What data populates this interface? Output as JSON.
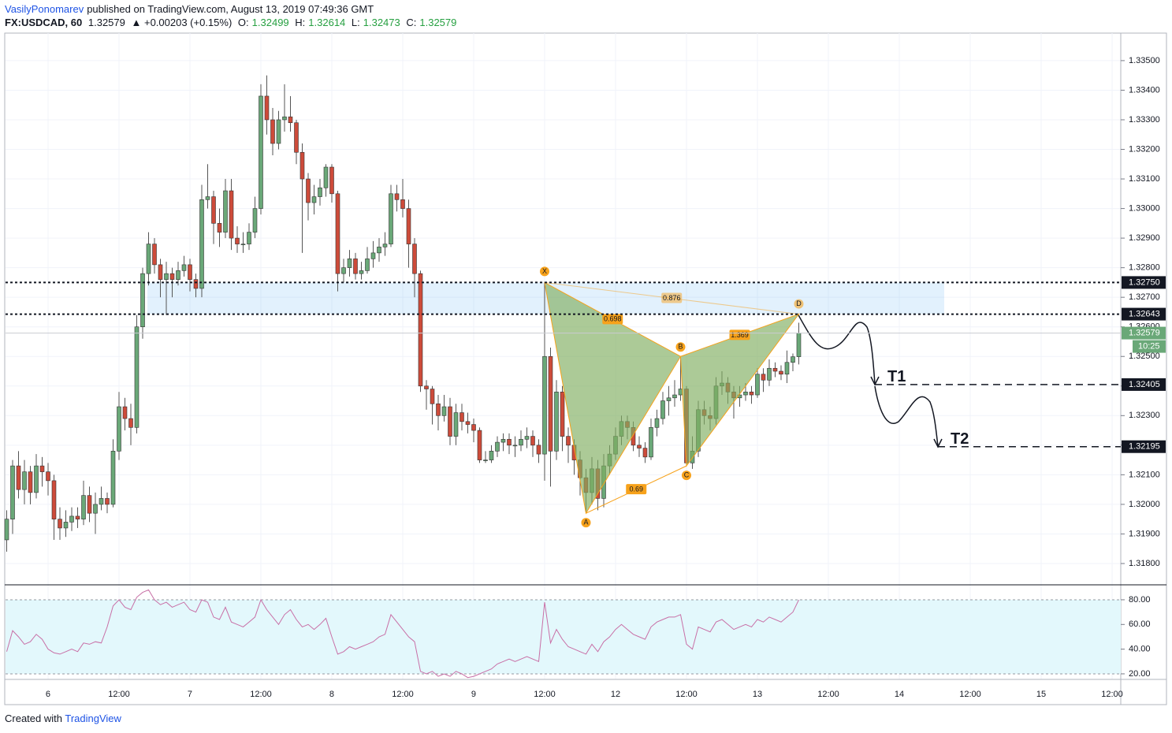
{
  "header": {
    "author": "VasilyPonomarev",
    "published": "published on TradingView.com, August 13, 2019 07:49:36 GMT",
    "symbol": "FX:USDCAD, 60",
    "last": "1.32579",
    "change": "▲ +0.00203 (+0.15%)",
    "open_label": "O:",
    "open": "1.32499",
    "high_label": "H:",
    "high": "1.32614",
    "low_label": "L:",
    "low": "1.32473",
    "close_label": "C:",
    "close": "1.32579"
  },
  "footer": {
    "text": "Created with",
    "brand": "TradingView"
  },
  "chart_data": [
    {
      "type": "candlestick",
      "up_color": "#6aa878",
      "down_color": "#cd4b3a",
      "xlim": [
        -0.2,
        188.47
      ],
      "ylim": [
        1.31728,
        1.33593
      ],
      "xticks": [
        {
          "value": 7,
          "label": "6"
        },
        {
          "value": 19,
          "label": "12:00"
        },
        {
          "value": 31,
          "label": "7"
        },
        {
          "value": 43,
          "label": "12:00"
        },
        {
          "value": 55,
          "label": "8"
        },
        {
          "value": 67,
          "label": "12:00"
        },
        {
          "value": 79,
          "label": "9"
        },
        {
          "value": 91,
          "label": "12:00"
        },
        {
          "value": 103,
          "label": "12"
        },
        {
          "value": 115,
          "label": "12:00"
        },
        {
          "value": 127,
          "label": "13"
        },
        {
          "value": 139,
          "label": "12:00"
        },
        {
          "value": 151,
          "label": "14"
        },
        {
          "value": 163,
          "label": "12:00"
        },
        {
          "value": 175,
          "label": "15"
        },
        {
          "value": 187,
          "label": "12:00"
        }
      ],
      "yticks": [
        {
          "value": 1.318,
          "label": "1.31800"
        },
        {
          "value": 1.319,
          "label": "1.31900"
        },
        {
          "value": 1.32,
          "label": "1.32000"
        },
        {
          "value": 1.321,
          "label": "1.32100"
        },
        {
          "value": 1.322,
          "label": "1.32200"
        },
        {
          "value": 1.323,
          "label": "1.32300"
        },
        {
          "value": 1.324,
          "label": "1.32400"
        },
        {
          "value": 1.325,
          "label": "1.32500"
        },
        {
          "value": 1.326,
          "label": "1.32600"
        },
        {
          "value": 1.327,
          "label": "1.32700"
        },
        {
          "value": 1.328,
          "label": "1.32800"
        },
        {
          "value": 1.329,
          "label": "1.32900"
        },
        {
          "value": 1.33,
          "label": "1.33000"
        },
        {
          "value": 1.331,
          "label": "1.33100"
        },
        {
          "value": 1.332,
          "label": "1.33200"
        },
        {
          "value": 1.333,
          "label": "1.33300"
        },
        {
          "value": 1.334,
          "label": "1.33400"
        },
        {
          "value": 1.335,
          "label": "1.33500"
        }
      ],
      "grid": true,
      "ohlc": [
        [
          1.3188,
          1.3198,
          1.3184,
          1.3195
        ],
        [
          1.3195,
          1.3215,
          1.319,
          1.3213
        ],
        [
          1.3213,
          1.3218,
          1.3202,
          1.3205
        ],
        [
          1.3205,
          1.3215,
          1.32,
          1.3211
        ],
        [
          1.3211,
          1.3213,
          1.32,
          1.3204
        ],
        [
          1.3204,
          1.3217,
          1.3202,
          1.3213
        ],
        [
          1.3213,
          1.3216,
          1.3206,
          1.3211
        ],
        [
          1.3211,
          1.3214,
          1.3203,
          1.3208
        ],
        [
          1.3208,
          1.321,
          1.3188,
          1.3195
        ],
        [
          1.3195,
          1.3199,
          1.3188,
          1.3192
        ],
        [
          1.3192,
          1.3198,
          1.3189,
          1.3194
        ],
        [
          1.3194,
          1.3199,
          1.3191,
          1.3196
        ],
        [
          1.3196,
          1.3199,
          1.3192,
          1.3195
        ],
        [
          1.3195,
          1.3208,
          1.3193,
          1.3203
        ],
        [
          1.3203,
          1.3206,
          1.3194,
          1.3197
        ],
        [
          1.3197,
          1.3204,
          1.319,
          1.32
        ],
        [
          1.32,
          1.3206,
          1.3198,
          1.3202
        ],
        [
          1.3202,
          1.3204,
          1.3197,
          1.32
        ],
        [
          1.32,
          1.3222,
          1.3199,
          1.3218
        ],
        [
          1.3218,
          1.3238,
          1.3215,
          1.3233
        ],
        [
          1.3233,
          1.3236,
          1.3225,
          1.3229
        ],
        [
          1.3229,
          1.3234,
          1.322,
          1.3226
        ],
        [
          1.3226,
          1.3264,
          1.3224,
          1.326
        ],
        [
          1.326,
          1.328,
          1.3256,
          1.3278
        ],
        [
          1.3278,
          1.3292,
          1.3274,
          1.3288
        ],
        [
          1.3288,
          1.329,
          1.3278,
          1.3281
        ],
        [
          1.3281,
          1.3283,
          1.327,
          1.3276
        ],
        [
          1.3276,
          1.3282,
          1.3264,
          1.3278
        ],
        [
          1.3278,
          1.328,
          1.327,
          1.3276
        ],
        [
          1.3276,
          1.3282,
          1.3274,
          1.3279
        ],
        [
          1.3279,
          1.3284,
          1.3277,
          1.3281
        ],
        [
          1.3281,
          1.3283,
          1.3272,
          1.3276
        ],
        [
          1.3276,
          1.3278,
          1.327,
          1.3273
        ],
        [
          1.3273,
          1.3308,
          1.327,
          1.3303
        ],
        [
          1.3303,
          1.3315,
          1.33,
          1.3304
        ],
        [
          1.3304,
          1.3306,
          1.3288,
          1.3295
        ],
        [
          1.3295,
          1.33,
          1.3287,
          1.3292
        ],
        [
          1.3292,
          1.331,
          1.329,
          1.3306
        ],
        [
          1.3306,
          1.331,
          1.3286,
          1.329
        ],
        [
          1.329,
          1.3294,
          1.3285,
          1.3288
        ],
        [
          1.3288,
          1.3292,
          1.3285,
          1.3288
        ],
        [
          1.3288,
          1.3295,
          1.3286,
          1.3292
        ],
        [
          1.3292,
          1.3304,
          1.329,
          1.33
        ],
        [
          1.33,
          1.3342,
          1.3298,
          1.3338
        ],
        [
          1.3338,
          1.3345,
          1.3325,
          1.333
        ],
        [
          1.333,
          1.3334,
          1.3318,
          1.3322
        ],
        [
          1.3322,
          1.3333,
          1.332,
          1.333
        ],
        [
          1.333,
          1.3342,
          1.3326,
          1.3331
        ],
        [
          1.3331,
          1.3338,
          1.3326,
          1.3329
        ],
        [
          1.3329,
          1.333,
          1.3315,
          1.3319
        ],
        [
          1.3319,
          1.3322,
          1.3285,
          1.331
        ],
        [
          1.331,
          1.3312,
          1.3296,
          1.3302
        ],
        [
          1.3302,
          1.3308,
          1.3298,
          1.3304
        ],
        [
          1.3304,
          1.331,
          1.3301,
          1.3307
        ],
        [
          1.3307,
          1.3315,
          1.3304,
          1.3314
        ],
        [
          1.3314,
          1.3315,
          1.3302,
          1.3305
        ],
        [
          1.3305,
          1.3306,
          1.3272,
          1.3278
        ],
        [
          1.3278,
          1.3283,
          1.3275,
          1.328
        ],
        [
          1.328,
          1.3286,
          1.3277,
          1.3283
        ],
        [
          1.3283,
          1.3285,
          1.3276,
          1.3278
        ],
        [
          1.3278,
          1.3282,
          1.3276,
          1.3279
        ],
        [
          1.3279,
          1.3287,
          1.3278,
          1.3283
        ],
        [
          1.3283,
          1.3289,
          1.328,
          1.3285
        ],
        [
          1.3285,
          1.329,
          1.3282,
          1.3287
        ],
        [
          1.3287,
          1.3292,
          1.3284,
          1.3288
        ],
        [
          1.3288,
          1.3308,
          1.3287,
          1.3305
        ],
        [
          1.3305,
          1.3308,
          1.3299,
          1.3303
        ],
        [
          1.3303,
          1.331,
          1.3297,
          1.33
        ],
        [
          1.33,
          1.3303,
          1.328,
          1.3288
        ],
        [
          1.3288,
          1.329,
          1.327,
          1.3278
        ],
        [
          1.3278,
          1.3279,
          1.3238,
          1.324
        ],
        [
          1.324,
          1.3242,
          1.3232,
          1.3239
        ],
        [
          1.3239,
          1.324,
          1.3227,
          1.3234
        ],
        [
          1.3234,
          1.3237,
          1.3225,
          1.323
        ],
        [
          1.323,
          1.3237,
          1.3228,
          1.3233
        ],
        [
          1.3233,
          1.3236,
          1.322,
          1.3223
        ],
        [
          1.3223,
          1.3234,
          1.322,
          1.3231
        ],
        [
          1.3231,
          1.3234,
          1.3225,
          1.3228
        ],
        [
          1.3228,
          1.3231,
          1.3224,
          1.3227
        ],
        [
          1.3227,
          1.3229,
          1.3221,
          1.3225
        ],
        [
          1.3225,
          1.3226,
          1.3214,
          1.3215
        ],
        [
          1.3215,
          1.3218,
          1.3214,
          1.3215
        ],
        [
          1.3215,
          1.322,
          1.3214,
          1.3218
        ],
        [
          1.3218,
          1.3223,
          1.3216,
          1.3221
        ],
        [
          1.3221,
          1.3224,
          1.3218,
          1.3222
        ],
        [
          1.3222,
          1.3224,
          1.3217,
          1.322
        ],
        [
          1.322,
          1.3223,
          1.3216,
          1.322
        ],
        [
          1.322,
          1.3225,
          1.3218,
          1.3222
        ],
        [
          1.3222,
          1.3226,
          1.3219,
          1.3223
        ],
        [
          1.3223,
          1.3225,
          1.3216,
          1.322
        ],
        [
          1.322,
          1.3222,
          1.3214,
          1.3217
        ],
        [
          1.3217,
          1.3275,
          1.3208,
          1.325
        ],
        [
          1.325,
          1.3253,
          1.3206,
          1.3218
        ],
        [
          1.3218,
          1.3242,
          1.3215,
          1.3238
        ],
        [
          1.3238,
          1.324,
          1.3218,
          1.3223
        ],
        [
          1.3223,
          1.3226,
          1.3214,
          1.322
        ],
        [
          1.322,
          1.3222,
          1.321,
          1.3215
        ],
        [
          1.3215,
          1.3218,
          1.3203,
          1.3209
        ],
        [
          1.3209,
          1.3212,
          1.3197,
          1.3204
        ],
        [
          1.3204,
          1.3216,
          1.32,
          1.3212
        ],
        [
          1.3212,
          1.3215,
          1.3198,
          1.3202
        ],
        [
          1.3202,
          1.3217,
          1.3199,
          1.3213
        ],
        [
          1.3213,
          1.322,
          1.321,
          1.3217
        ],
        [
          1.3217,
          1.3226,
          1.3215,
          1.3223
        ],
        [
          1.3223,
          1.323,
          1.322,
          1.3228
        ],
        [
          1.3228,
          1.323,
          1.3222,
          1.3226
        ],
        [
          1.3226,
          1.3228,
          1.3218,
          1.322
        ],
        [
          1.322,
          1.3223,
          1.3216,
          1.3219
        ],
        [
          1.3219,
          1.3221,
          1.3214,
          1.3216
        ],
        [
          1.3216,
          1.3229,
          1.3215,
          1.3226
        ],
        [
          1.3226,
          1.3232,
          1.3223,
          1.3229
        ],
        [
          1.3229,
          1.3238,
          1.3227,
          1.3235
        ],
        [
          1.3235,
          1.324,
          1.323,
          1.3236
        ],
        [
          1.3236,
          1.3242,
          1.3233,
          1.3237
        ],
        [
          1.3237,
          1.325,
          1.3235,
          1.3239
        ],
        [
          1.3239,
          1.324,
          1.3213,
          1.3214
        ],
        [
          1.3214,
          1.3223,
          1.3212,
          1.3218
        ],
        [
          1.3218,
          1.3235,
          1.3216,
          1.3232
        ],
        [
          1.3232,
          1.3235,
          1.3227,
          1.323
        ],
        [
          1.323,
          1.3233,
          1.3225,
          1.3229
        ],
        [
          1.3229,
          1.3243,
          1.3227,
          1.324
        ],
        [
          1.324,
          1.3245,
          1.3237,
          1.3241
        ],
        [
          1.3241,
          1.3243,
          1.3234,
          1.3238
        ],
        [
          1.3238,
          1.324,
          1.3229,
          1.3236
        ],
        [
          1.3236,
          1.324,
          1.3233,
          1.3237
        ],
        [
          1.3237,
          1.3241,
          1.3235,
          1.3238
        ],
        [
          1.3238,
          1.324,
          1.3234,
          1.3237
        ],
        [
          1.3237,
          1.3246,
          1.3236,
          1.3244
        ],
        [
          1.3244,
          1.3246,
          1.3238,
          1.3242
        ],
        [
          1.3242,
          1.3249,
          1.324,
          1.3246
        ],
        [
          1.3246,
          1.3248,
          1.3243,
          1.3245
        ],
        [
          1.3245,
          1.3247,
          1.3242,
          1.3244
        ],
        [
          1.3244,
          1.3252,
          1.3241,
          1.3248
        ],
        [
          1.3248,
          1.3251,
          1.3245,
          1.32499
        ],
        [
          1.32499,
          1.32614,
          1.32473,
          1.32579
        ]
      ],
      "levels": [
        {
          "value": 1.3275,
          "label": "1.32750"
        },
        {
          "value": 1.32643,
          "label": "1.32643"
        }
      ],
      "targets": [
        {
          "name": "T1",
          "value": 1.32405,
          "label": "1.32405"
        },
        {
          "name": "T2",
          "value": 1.32195,
          "label": "1.32195"
        }
      ],
      "last_price": {
        "value": 1.32579,
        "label": "1.32579"
      },
      "countdown": "10:25",
      "pattern": {
        "points": [
          {
            "label": "X",
            "x": 91,
            "value": 1.3275
          },
          {
            "label": "A",
            "x": 98,
            "value": 1.3197
          },
          {
            "label": "B",
            "x": 114,
            "value": 1.325
          },
          {
            "label": "C",
            "x": 115,
            "value": 1.3213
          },
          {
            "label": "D",
            "x": 134,
            "value": 1.32643
          }
        ],
        "ratios": [
          "0.698",
          "1.369",
          "0.69",
          "0.876"
        ],
        "color": "#f7a21b",
        "fill": "#7fae5f"
      }
    },
    {
      "type": "line",
      "color": "#c86fa6",
      "band_color": "#e3f8fc",
      "ylim": [
        15.5,
        92.1
      ],
      "yticks": [
        {
          "value": 20,
          "label": "20.00"
        },
        {
          "value": 40,
          "label": "40.00"
        },
        {
          "value": 60,
          "label": "60.00"
        },
        {
          "value": 80,
          "label": "80.00"
        }
      ],
      "values": [
        38,
        55,
        50,
        44,
        46,
        52,
        48,
        40,
        37,
        36,
        38,
        40,
        38,
        45,
        44,
        46,
        45,
        58,
        75,
        80,
        74,
        72,
        82,
        86,
        88,
        80,
        76,
        78,
        74,
        76,
        78,
        72,
        70,
        80,
        78,
        66,
        64,
        74,
        62,
        60,
        58,
        62,
        66,
        80,
        72,
        66,
        60,
        68,
        72,
        64,
        58,
        60,
        56,
        60,
        65,
        50,
        36,
        38,
        42,
        40,
        42,
        44,
        46,
        50,
        52,
        68,
        62,
        56,
        50,
        46,
        22,
        20,
        22,
        18,
        20,
        18,
        22,
        20,
        17,
        18,
        20,
        22,
        24,
        28,
        30,
        32,
        30,
        32,
        34,
        32,
        30,
        78,
        45,
        56,
        48,
        42,
        40,
        38,
        36,
        44,
        38,
        46,
        50,
        56,
        60,
        56,
        52,
        50,
        48,
        58,
        62,
        64,
        66,
        66,
        68,
        44,
        40,
        58,
        56,
        54,
        62,
        64,
        60,
        56,
        58,
        60,
        58,
        64,
        62,
        66,
        64,
        62,
        66,
        70,
        80
      ]
    }
  ]
}
